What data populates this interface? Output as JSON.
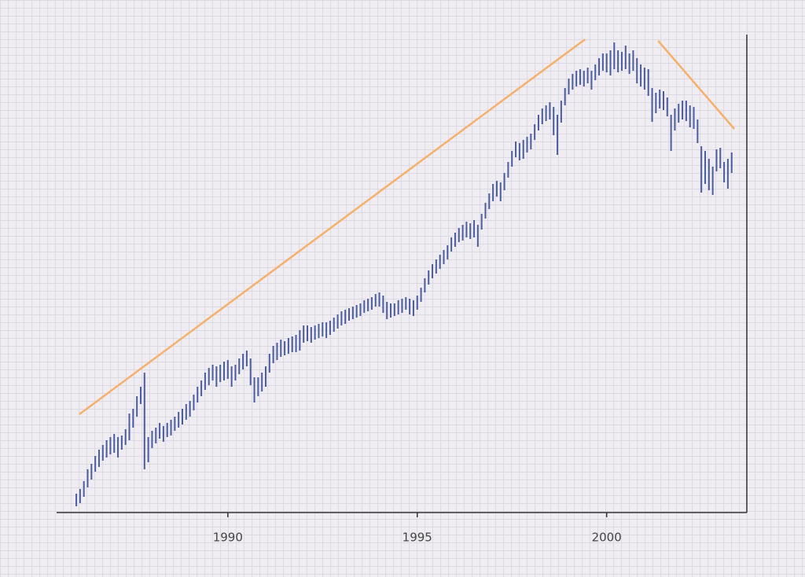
{
  "chart_data": {
    "type": "range-bar",
    "color": "#4b5d9e",
    "xlim": [
      1985.48,
      2003.7
    ],
    "xticks": [
      1990,
      1995,
      2000
    ],
    "ylim": [
      0,
      608
    ],
    "x": [
      1986.0,
      1986.1,
      1986.2,
      1986.3,
      1986.4,
      1986.5,
      1986.6,
      1986.7,
      1986.8,
      1986.9,
      1987.0,
      1987.1,
      1987.2,
      1987.3,
      1987.4,
      1987.5,
      1987.6,
      1987.7,
      1987.8,
      1987.9,
      1988.0,
      1988.1,
      1988.2,
      1988.3,
      1988.4,
      1988.5,
      1988.6,
      1988.7,
      1988.8,
      1988.9,
      1989.0,
      1989.1,
      1989.2,
      1989.3,
      1989.4,
      1989.5,
      1989.6,
      1989.7,
      1989.8,
      1989.9,
      1990.0,
      1990.1,
      1990.2,
      1990.3,
      1990.4,
      1990.5,
      1990.6,
      1990.7,
      1990.8,
      1990.9,
      1991.0,
      1991.1,
      1991.2,
      1991.3,
      1991.4,
      1991.5,
      1991.6,
      1991.7,
      1991.8,
      1991.9,
      1992.0,
      1992.1,
      1992.2,
      1992.3,
      1992.4,
      1992.5,
      1992.6,
      1992.7,
      1992.8,
      1992.9,
      1993.0,
      1993.1,
      1993.2,
      1993.3,
      1993.4,
      1993.5,
      1993.6,
      1993.7,
      1993.8,
      1993.9,
      1994.0,
      1994.1,
      1994.2,
      1994.3,
      1994.4,
      1994.5,
      1994.6,
      1994.7,
      1994.8,
      1994.9,
      1995.0,
      1995.1,
      1995.2,
      1995.3,
      1995.4,
      1995.5,
      1995.6,
      1995.7,
      1995.8,
      1995.9,
      1996.0,
      1996.1,
      1996.2,
      1996.3,
      1996.4,
      1996.5,
      1996.6,
      1996.7,
      1996.8,
      1996.9,
      1997.0,
      1997.1,
      1997.2,
      1997.3,
      1997.4,
      1997.5,
      1997.6,
      1997.7,
      1997.8,
      1997.9,
      1998.0,
      1998.1,
      1998.2,
      1998.3,
      1998.4,
      1998.5,
      1998.6,
      1998.7,
      1998.8,
      1998.9,
      1999.0,
      1999.1,
      1999.2,
      1999.3,
      1999.4,
      1999.5,
      1999.6,
      1999.7,
      1999.8,
      1999.9,
      2000.0,
      2000.1,
      2000.2,
      2000.3,
      2000.4,
      2000.5,
      2000.6,
      2000.7,
      2000.8,
      2000.9,
      2001.0,
      2001.1,
      2001.2,
      2001.3,
      2001.4,
      2001.5,
      2001.6,
      2001.7,
      2001.8,
      2001.9,
      2002.0,
      2002.1,
      2002.2,
      2002.3,
      2002.4,
      2002.5,
      2002.6,
      2002.7,
      2002.8,
      2002.9,
      2003.0,
      2003.1,
      2003.2,
      2003.3
    ],
    "low": [
      8,
      12,
      20,
      32,
      42,
      52,
      58,
      66,
      70,
      74,
      76,
      70,
      80,
      86,
      92,
      108,
      122,
      138,
      55,
      64,
      82,
      88,
      94,
      90,
      96,
      98,
      104,
      108,
      112,
      118,
      122,
      130,
      140,
      148,
      156,
      162,
      168,
      160,
      166,
      168,
      170,
      160,
      168,
      176,
      182,
      186,
      162,
      140,
      148,
      154,
      160,
      178,
      190,
      194,
      198,
      200,
      202,
      204,
      204,
      206,
      216,
      218,
      216,
      220,
      222,
      224,
      222,
      226,
      230,
      234,
      238,
      240,
      244,
      246,
      248,
      250,
      254,
      256,
      258,
      262,
      262,
      254,
      246,
      248,
      250,
      252,
      254,
      258,
      252,
      250,
      258,
      268,
      280,
      290,
      298,
      304,
      310,
      316,
      322,
      332,
      338,
      344,
      346,
      350,
      348,
      350,
      338,
      360,
      374,
      386,
      396,
      402,
      396,
      410,
      426,
      440,
      452,
      448,
      450,
      458,
      462,
      474,
      486,
      494,
      498,
      500,
      480,
      455,
      496,
      518,
      532,
      538,
      542,
      544,
      542,
      546,
      538,
      550,
      556,
      562,
      560,
      556,
      564,
      560,
      562,
      564,
      558,
      562,
      546,
      542,
      538,
      530,
      497,
      508,
      514,
      512,
      504,
      460,
      486,
      496,
      500,
      498,
      490,
      488,
      470,
      407,
      418,
      410,
      404,
      434,
      438,
      420,
      412,
      432
    ],
    "high": [
      24,
      30,
      40,
      55,
      62,
      72,
      80,
      86,
      92,
      96,
      100,
      96,
      98,
      106,
      126,
      132,
      148,
      160,
      178,
      96,
      104,
      108,
      114,
      110,
      114,
      118,
      122,
      128,
      132,
      138,
      142,
      150,
      160,
      168,
      178,
      184,
      188,
      186,
      188,
      192,
      194,
      186,
      188,
      196,
      202,
      206,
      196,
      172,
      172,
      178,
      186,
      202,
      212,
      216,
      220,
      218,
      222,
      224,
      226,
      232,
      238,
      238,
      236,
      238,
      240,
      242,
      242,
      244,
      248,
      252,
      256,
      258,
      260,
      262,
      264,
      266,
      270,
      272,
      274,
      278,
      280,
      276,
      268,
      266,
      266,
      270,
      272,
      274,
      272,
      270,
      276,
      286,
      298,
      308,
      316,
      322,
      328,
      334,
      340,
      350,
      356,
      362,
      366,
      370,
      368,
      372,
      366,
      380,
      394,
      406,
      418,
      422,
      420,
      432,
      446,
      460,
      472,
      470,
      474,
      478,
      482,
      494,
      506,
      514,
      518,
      522,
      516,
      506,
      524,
      540,
      552,
      558,
      562,
      564,
      562,
      566,
      562,
      570,
      578,
      584,
      584,
      588,
      598,
      588,
      586,
      594,
      584,
      588,
      578,
      570,
      566,
      564,
      540,
      534,
      538,
      536,
      528,
      506,
      514,
      520,
      524,
      524,
      518,
      516,
      500,
      466,
      460,
      450,
      440,
      462,
      464,
      446,
      450,
      458
    ],
    "trendlines": [
      {
        "color": "#f5b06a",
        "x": [
          1986.08,
          1999.43
        ],
        "y": [
          125,
          602
        ]
      },
      {
        "color": "#f5b06a",
        "x": [
          2001.36,
          2003.37
        ],
        "y": [
          600,
          488
        ]
      }
    ]
  }
}
